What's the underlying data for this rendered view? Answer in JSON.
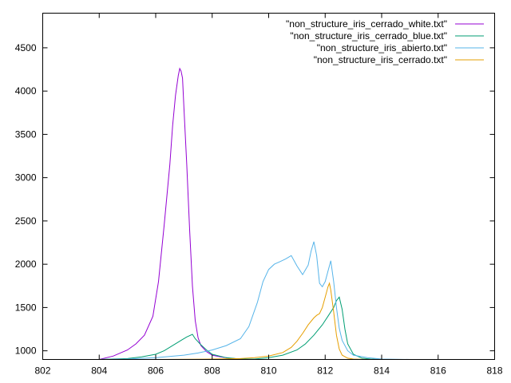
{
  "chart_data": {
    "type": "line",
    "title": "",
    "xlabel": "",
    "ylabel": "",
    "xlim": [
      802,
      818
    ],
    "ylim": [
      900,
      4900
    ],
    "x_ticks": [
      "802",
      "804",
      "806",
      "808",
      "810",
      "812",
      "814",
      "816",
      "818"
    ],
    "y_ticks": [
      "1000",
      "1500",
      "2000",
      "2500",
      "3000",
      "3500",
      "4000",
      "4500"
    ],
    "grid": false,
    "legend_position": "top-right",
    "series": [
      {
        "name": "\"non_structure_iris_cerrado_white.txt\"",
        "color": "#9400d3",
        "x": [
          804.0,
          804.5,
          805.0,
          805.3,
          805.6,
          805.9,
          806.1,
          806.3,
          806.5,
          806.6,
          806.7,
          806.8,
          806.85,
          806.9,
          806.95,
          807.0,
          807.1,
          807.2,
          807.3,
          807.4,
          807.5,
          807.6,
          807.8,
          808.0,
          808.3,
          808.6,
          809.0,
          809.5,
          810.0
        ],
        "y": [
          900,
          940,
          1010,
          1080,
          1180,
          1400,
          1800,
          2450,
          3150,
          3600,
          3950,
          4180,
          4260,
          4230,
          4150,
          3800,
          3150,
          2400,
          1750,
          1350,
          1150,
          1060,
          990,
          950,
          930,
          915,
          905,
          900,
          900
        ]
      },
      {
        "name": "\"non_structure_iris_cerrado_blue.txt\"",
        "color": "#009e73",
        "x": [
          804.0,
          805.0,
          805.5,
          806.0,
          806.3,
          806.6,
          806.9,
          807.1,
          807.3,
          807.4,
          807.6,
          807.8,
          808.0,
          808.5,
          809.0,
          809.5,
          810.0,
          810.5,
          811.0,
          811.3,
          811.6,
          811.9,
          812.1,
          812.3,
          812.4,
          812.5,
          812.6,
          812.7,
          812.8,
          813.0,
          813.3,
          813.6,
          814.0
        ],
        "y": [
          900,
          910,
          930,
          960,
          1000,
          1060,
          1120,
          1160,
          1190,
          1140,
          1070,
          1010,
          960,
          920,
          905,
          905,
          920,
          950,
          1010,
          1080,
          1180,
          1300,
          1400,
          1500,
          1580,
          1620,
          1480,
          1250,
          1080,
          960,
          915,
          905,
          900
        ]
      },
      {
        "name": "\"non_structure_iris_abierto.txt\"",
        "color": "#56b4e9",
        "x": [
          804.0,
          805.0,
          806.0,
          807.0,
          807.5,
          808.0,
          808.5,
          809.0,
          809.3,
          809.6,
          809.8,
          810.0,
          810.2,
          810.4,
          810.6,
          810.8,
          811.0,
          811.2,
          811.4,
          811.5,
          811.6,
          811.7,
          811.8,
          811.9,
          812.0,
          812.1,
          812.2,
          812.3,
          812.4,
          812.5,
          812.6,
          812.8,
          813.0,
          813.5,
          814.0,
          815.0
        ],
        "y": [
          900,
          905,
          920,
          950,
          975,
          1010,
          1060,
          1140,
          1280,
          1560,
          1800,
          1940,
          2000,
          2030,
          2060,
          2100,
          1980,
          1880,
          1990,
          2150,
          2260,
          2100,
          1780,
          1740,
          1800,
          1920,
          2040,
          1800,
          1500,
          1260,
          1120,
          1000,
          950,
          920,
          905,
          900
        ]
      },
      {
        "name": "\"non_structure_iris_cerrado.txt\"",
        "color": "#e69f00",
        "x": [
          804.0,
          806.0,
          808.0,
          809.0,
          809.5,
          810.0,
          810.5,
          810.8,
          811.0,
          811.2,
          811.4,
          811.6,
          811.7,
          811.8,
          811.9,
          812.0,
          812.1,
          812.15,
          812.2,
          812.3,
          812.4,
          812.5,
          812.6,
          812.8,
          813.0,
          813.5,
          814.0
        ],
        "y": [
          900,
          900,
          905,
          910,
          920,
          940,
          980,
          1040,
          1110,
          1200,
          1300,
          1380,
          1410,
          1430,
          1500,
          1620,
          1740,
          1780,
          1700,
          1450,
          1180,
          1020,
          950,
          915,
          905,
          900,
          900
        ]
      }
    ]
  }
}
